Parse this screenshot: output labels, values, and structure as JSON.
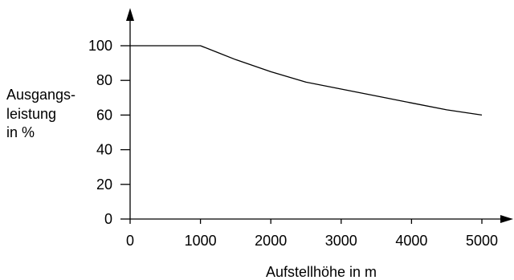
{
  "chart_data": {
    "type": "line",
    "xlabel": "Aufstellhöhe in m",
    "ylabel_lines": [
      "Ausgangs-",
      "leistung",
      "in %"
    ],
    "xlim": [
      0,
      5000
    ],
    "ylim": [
      0,
      100
    ],
    "x_ticks": [
      0,
      1000,
      2000,
      3000,
      4000,
      5000
    ],
    "y_ticks": [
      0,
      20,
      40,
      60,
      80,
      100
    ],
    "grid": false,
    "legend": "none",
    "line_color": "#000000",
    "series": [
      {
        "x": [
          0,
          1000,
          1250,
          1500,
          2000,
          2500,
          3000,
          3500,
          4000,
          4500,
          5000
        ],
        "y": [
          100,
          100,
          96,
          92,
          85,
          79,
          75,
          71,
          67,
          63,
          60
        ]
      }
    ]
  }
}
